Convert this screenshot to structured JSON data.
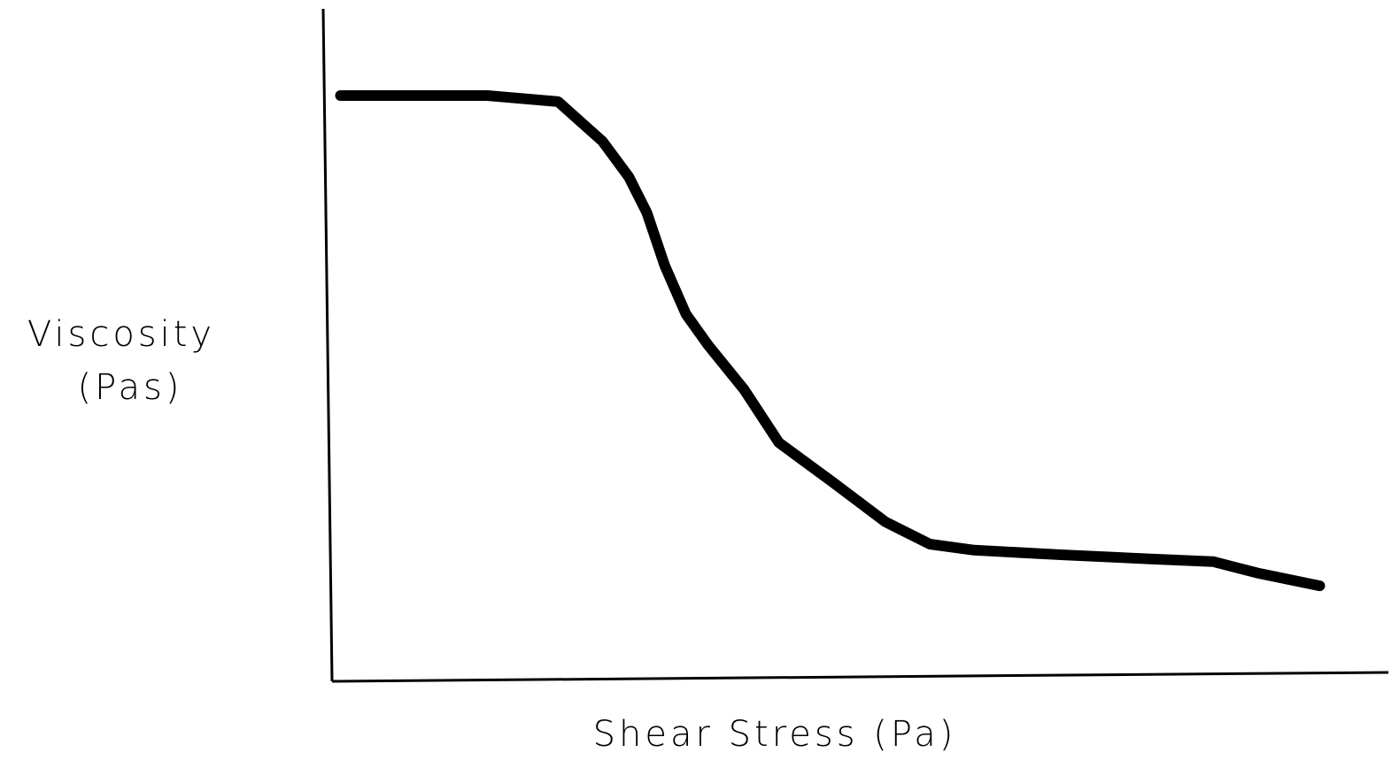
{
  "chart_data": {
    "type": "line",
    "y_label": [
      "Viscosity",
      "(Pas)"
    ],
    "x_label": "Shear Stress (Pa)",
    "x": [
      0.8,
      14.7,
      21.4,
      25.6,
      28.1,
      29.8,
      31.5,
      33.5,
      35.6,
      39,
      42.3,
      47.4,
      52.4,
      56.6,
      60.8,
      69.2,
      77.5,
      83.4,
      87.6,
      93.5
    ],
    "values": [
      87.1,
      87.1,
      86.2,
      80.3,
      75,
      69.7,
      61.8,
      54.6,
      50,
      43.4,
      35.5,
      29.6,
      23.7,
      20.4,
      19.5,
      18.8,
      18.2,
      17.8,
      16.1,
      14.2
    ],
    "color": "#000000",
    "xlim": [
      0,
      100
    ],
    "ylim": [
      0,
      100
    ]
  }
}
